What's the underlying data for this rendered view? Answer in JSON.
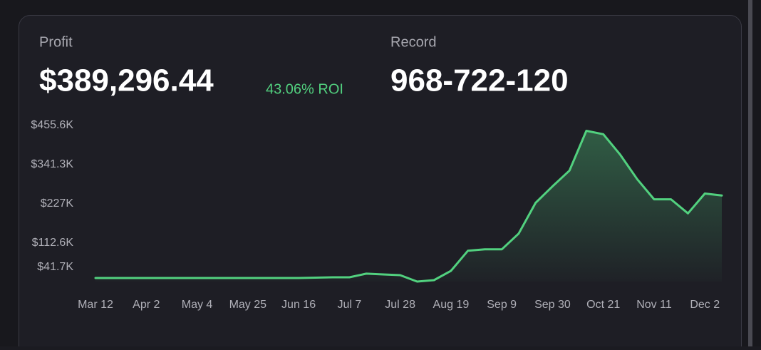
{
  "header": {
    "profit_label": "Profit",
    "profit": "$389,296.44",
    "roi": "43.06% ROI",
    "record_label": "Record",
    "record": "968-722-120"
  },
  "chart_data": {
    "type": "area",
    "categories": [
      "Mar 12",
      null,
      null,
      "Apr 2",
      null,
      null,
      "May 4",
      null,
      null,
      "May 25",
      null,
      null,
      "Jun 16",
      null,
      null,
      "Jul 7",
      null,
      null,
      "Jul 28",
      null,
      null,
      "Aug 19",
      null,
      null,
      "Sep 9",
      null,
      null,
      "Sep 30",
      null,
      null,
      "Oct 21",
      null,
      null,
      "Nov 11",
      null,
      null,
      "Dec 2",
      null
    ],
    "series": [
      {
        "name": "Profit",
        "color": "#52d17f",
        "values": [
          10400,
          10400,
          10400,
          10400,
          10400,
          10400,
          10400,
          10400,
          10400,
          10400,
          10400,
          10400,
          10400,
          11500,
          12500,
          12500,
          23000,
          20900,
          18800,
          0,
          4200,
          31400,
          89900,
          94100,
          94100,
          140000,
          229900,
          278000,
          324000,
          440000,
          430000,
          370000,
          299000,
          240000,
          240000,
          199000,
          257000,
          251000
        ]
      }
    ],
    "ylim": [
      0,
      455600
    ],
    "yticks": [
      {
        "value": 41700,
        "label": "$41.7K"
      },
      {
        "value": 112600,
        "label": "$112.6K"
      },
      {
        "value": 227000,
        "label": "$227K"
      },
      {
        "value": 341300,
        "label": "$341.3K"
      },
      {
        "value": 455600,
        "label": "$455.6K"
      }
    ]
  }
}
